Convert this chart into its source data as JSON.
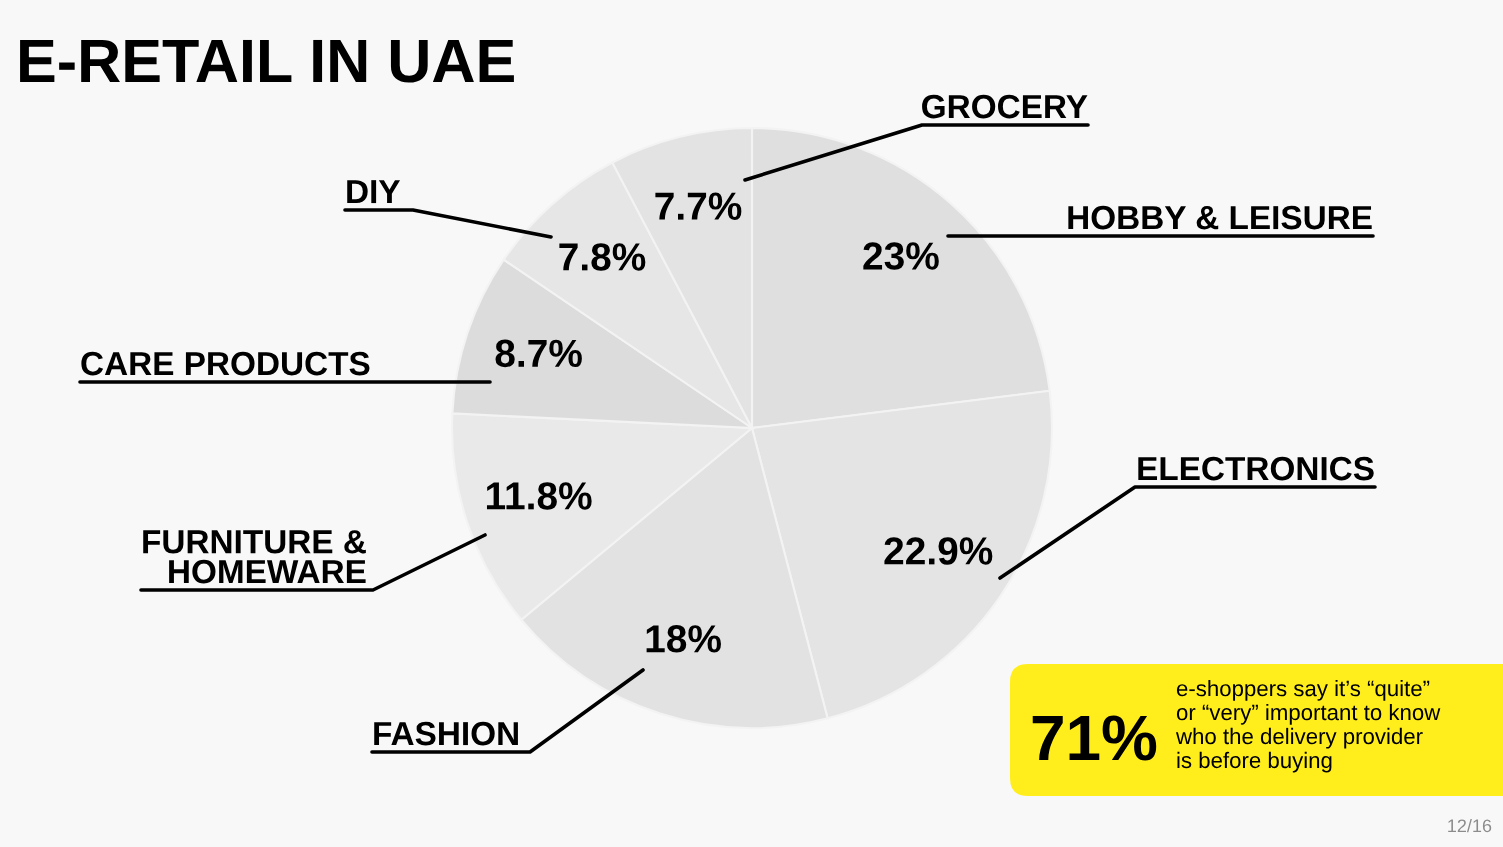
{
  "chart_data": {
    "type": "pie",
    "title": "E-RETAIL IN UAE",
    "categories": [
      "HOBBY & LEISURE",
      "ELECTRONICS",
      "FASHION",
      "FURNITURE &\nHOMEWARE",
      "CARE PRODUCTS",
      "DIY",
      "GROCERY"
    ],
    "values": [
      23,
      22.9,
      18,
      11.8,
      8.7,
      7.8,
      7.7
    ],
    "value_labels": [
      "23%",
      "22.9%",
      "18%",
      "11.8%",
      "8.7%",
      "7.8%",
      "7.7%"
    ],
    "colors": [
      "#dfdfdf",
      "#e4e4e4",
      "#e2e2e2",
      "#e9e9e9",
      "#dcdcdc",
      "#e6e6e6",
      "#e3e3e3"
    ],
    "annotations": [
      "71%",
      "e-shoppers say it’s “quite”\nor “very” important to know\nwho the delivery provider\nis before buying",
      "12/16"
    ]
  }
}
